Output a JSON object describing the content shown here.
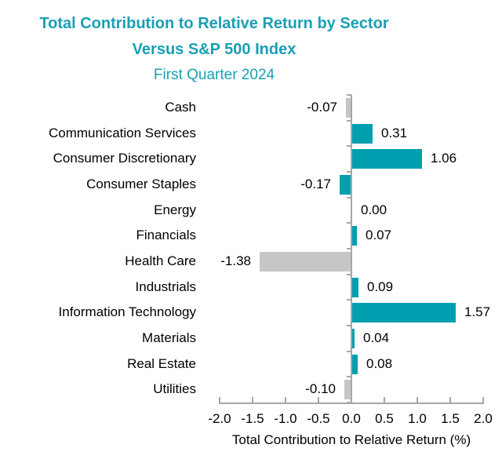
{
  "title": {
    "line1": "Total Contribution to Relative Return by Sector",
    "line2": "Versus S&P 500 Index",
    "line3": "First Quarter 2024"
  },
  "chart_data": {
    "type": "bar",
    "orientation": "horizontal",
    "title": "Total Contribution to Relative Return by Sector Versus S&P 500 Index",
    "subtitle": "First Quarter 2024",
    "xlabel": "Total Contribution to Relative Return (%)",
    "ylabel": "",
    "xlim": [
      -2.0,
      2.0
    ],
    "xtick_labels": [
      "-2.0",
      "-1.5",
      "-1.0",
      "-0.5",
      "0.0",
      "0.5",
      "1.0",
      "1.5",
      "2.0"
    ],
    "grid": false,
    "legend": "none",
    "categories": [
      "Cash",
      "Communication Services",
      "Consumer Discretionary",
      "Consumer Staples",
      "Energy",
      "Financials",
      "Health Care",
      "Industrials",
      "Information Technology",
      "Materials",
      "Real Estate",
      "Utilities"
    ],
    "values": [
      -0.07,
      0.31,
      1.06,
      -0.17,
      0.0,
      0.07,
      -1.38,
      0.09,
      1.57,
      0.04,
      0.08,
      -0.1
    ],
    "value_labels": [
      "-0.07",
      "0.31",
      "1.06",
      "-0.17",
      "0.00",
      "0.07",
      "-1.38",
      "0.09",
      "1.57",
      "0.04",
      "0.08",
      "-0.10"
    ],
    "bar_colors": [
      "gray",
      "teal",
      "teal",
      "teal",
      "teal",
      "teal",
      "gray",
      "teal",
      "teal",
      "teal",
      "teal",
      "gray"
    ]
  },
  "colors": {
    "teal_bar": "#009FB0",
    "gray_bar": "#C6C6C6",
    "title_teal": "#1A9FB4",
    "axis_gray": "#A6A6A6",
    "text_black": "#000000"
  }
}
